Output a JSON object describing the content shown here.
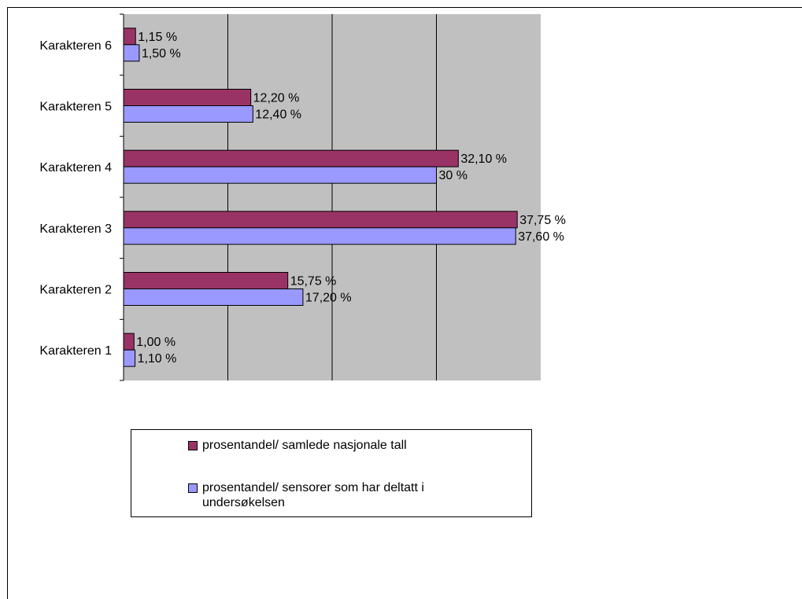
{
  "chart_data": {
    "type": "bar",
    "orientation": "horizontal",
    "categories": [
      "Karakteren 1",
      "Karakteren 2",
      "Karakteren 3",
      "Karakteren 4",
      "Karakteren 5",
      "Karakteren 6"
    ],
    "series": [
      {
        "name": "prosentandel/ samlede nasjonale tall",
        "values": [
          1.0,
          15.75,
          37.75,
          32.1,
          12.2,
          1.15
        ],
        "labels": [
          "1,00 %",
          "15,75 %",
          "37,75 %",
          "32,10 %",
          "12,20 %",
          "1,15 %"
        ],
        "color": "#993366"
      },
      {
        "name": "prosentandel/ sensorer som har deltatt i undersøkelsen",
        "values": [
          1.1,
          17.2,
          37.6,
          30.0,
          12.4,
          1.5
        ],
        "labels": [
          "1,10 %",
          "17,20 %",
          "37,60 %",
          "30 %",
          "12,40 %",
          "1,50 %"
        ],
        "color": "#9999ff"
      }
    ],
    "xlim": [
      0,
      40
    ],
    "grid": true,
    "plot_background": "#c0c0c0",
    "legend_position": "bottom"
  }
}
